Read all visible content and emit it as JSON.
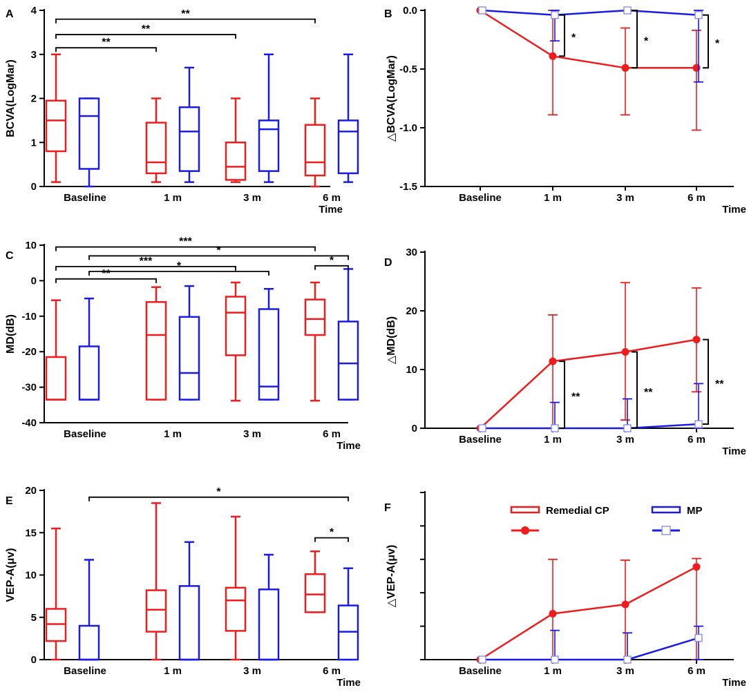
{
  "colors": {
    "red": "#ee1c1c",
    "blue": "#1a1ae6",
    "black": "#000000"
  },
  "chart_data": [
    {
      "id": "A",
      "type": "box",
      "ylabel": "BCVA(LogMar)",
      "xlabel": "Time",
      "categories": [
        "Baseline",
        "1 m",
        "3 m",
        "6 m"
      ],
      "ylim": [
        0,
        4
      ],
      "yticks": [
        0,
        1,
        2,
        3,
        4
      ],
      "series": [
        {
          "name": "Remedial CP",
          "color": "red",
          "boxes": [
            {
              "min": 0.1,
              "q1": 0.8,
              "median": 1.5,
              "q3": 1.95,
              "max": 3.0
            },
            {
              "min": 0.1,
              "q1": 0.3,
              "median": 0.55,
              "q3": 1.45,
              "max": 2.0
            },
            {
              "min": 0.1,
              "q1": 0.15,
              "median": 0.45,
              "q3": 1.0,
              "max": 2.0
            },
            {
              "min": 0.0,
              "q1": 0.25,
              "median": 0.55,
              "q3": 1.4,
              "max": 2.0
            }
          ]
        },
        {
          "name": "MP",
          "color": "blue",
          "boxes": [
            {
              "min": 0.0,
              "q1": 0.4,
              "median": 1.6,
              "q3": 2.0,
              "max": 2.0
            },
            {
              "min": 0.1,
              "q1": 0.35,
              "median": 1.25,
              "q3": 1.8,
              "max": 2.7
            },
            {
              "min": 0.1,
              "q1": 0.35,
              "median": 1.3,
              "q3": 1.5,
              "max": 3.0
            },
            {
              "min": 0.1,
              "q1": 0.3,
              "median": 1.25,
              "q3": 1.5,
              "max": 3.0
            }
          ]
        }
      ],
      "brackets": [
        {
          "from": [
            0,
            0
          ],
          "to": [
            1,
            0
          ],
          "y": 3.15,
          "label": "**"
        },
        {
          "from": [
            0,
            0
          ],
          "to": [
            2,
            0
          ],
          "y": 3.45,
          "label": "**"
        },
        {
          "from": [
            0,
            0
          ],
          "to": [
            3,
            0
          ],
          "y": 3.8,
          "label": "**"
        }
      ]
    },
    {
      "id": "B",
      "type": "line",
      "ylabel": "△BCVA(LogMar)",
      "xlabel": "Time",
      "categories": [
        "Baseline",
        "1 m",
        "3 m",
        "6 m"
      ],
      "ylim": [
        -1.5,
        0
      ],
      "yticks": [
        0,
        -0.5,
        -1.0,
        -1.5
      ],
      "yticklabels": [
        "0.0",
        "-0.5",
        "-1.0",
        "-1.5"
      ],
      "series": [
        {
          "name": "Remedial CP",
          "color": "red",
          "marker": "circle",
          "values": [
            0,
            -0.39,
            -0.49,
            -0.49
          ],
          "err_low": [
            0,
            -0.89,
            -0.89,
            -1.02
          ],
          "err_high": [
            0,
            0.0,
            -0.15,
            -0.17
          ]
        },
        {
          "name": "MP",
          "color": "blue",
          "marker": "square",
          "values": [
            0,
            -0.04,
            0,
            -0.04
          ],
          "err_low": [
            0,
            -0.26,
            0,
            -0.61
          ],
          "err_high": [
            0,
            0,
            0,
            0
          ]
        }
      ],
      "brackets": [
        {
          "x": 1,
          "y1": -0.04,
          "y2": -0.39,
          "label": "*"
        },
        {
          "x": 2,
          "y1": 0,
          "y2": -0.49,
          "label": "*"
        },
        {
          "x": 3,
          "y1": -0.04,
          "y2": -0.49,
          "label": "*"
        }
      ]
    },
    {
      "id": "C",
      "type": "box",
      "ylabel": "MD(dB)",
      "xlabel": "Time",
      "categories": [
        "Baseline",
        "1 m",
        "3 m",
        "6 m"
      ],
      "ylim": [
        -40,
        10
      ],
      "yticks": [
        -40,
        -30,
        -20,
        -10,
        0,
        10
      ],
      "series": [
        {
          "name": "Remedial CP",
          "color": "red",
          "boxes": [
            {
              "min": -33.5,
              "q1": -33.5,
              "median": -33.5,
              "q3": -21.5,
              "max": -5.5
            },
            {
              "min": -33.5,
              "q1": -33.5,
              "median": -15.3,
              "q3": -6.0,
              "max": -1.8
            },
            {
              "min": -33.8,
              "q1": -21.0,
              "median": -9.0,
              "q3": -4.5,
              "max": -0.5
            },
            {
              "min": -33.8,
              "q1": -15.3,
              "median": -10.8,
              "q3": -5.3,
              "max": -0.5
            }
          ]
        },
        {
          "name": "MP",
          "color": "blue",
          "boxes": [
            {
              "min": -33.5,
              "q1": -33.5,
              "median": -33.5,
              "q3": -18.5,
              "max": -5.0
            },
            {
              "min": -33.5,
              "q1": -33.5,
              "median": -26.0,
              "q3": -10.2,
              "max": -1.5
            },
            {
              "min": -33.5,
              "q1": -33.5,
              "median": -29.8,
              "q3": -8.0,
              "max": -2.3
            },
            {
              "min": -33.5,
              "q1": -33.5,
              "median": -23.3,
              "q3": -11.5,
              "max": 3.3
            }
          ]
        }
      ],
      "brackets": [
        {
          "from": [
            0,
            0
          ],
          "to": [
            1,
            0
          ],
          "y": 0.5,
          "label": "**"
        },
        {
          "from": [
            0,
            1
          ],
          "to": [
            2,
            1
          ],
          "y": 2.6,
          "label": "*"
        },
        {
          "from": [
            0,
            0
          ],
          "to": [
            2,
            0
          ],
          "y": 4.0,
          "label": "***"
        },
        {
          "from": [
            0,
            1
          ],
          "to": [
            3,
            1
          ],
          "y": 7.0,
          "label": "*"
        },
        {
          "from": [
            0,
            0
          ],
          "to": [
            3,
            0
          ],
          "y": 9.5,
          "label": "***"
        },
        {
          "from": [
            3,
            0
          ],
          "to": [
            3,
            1
          ],
          "y": 4.2,
          "label": "*"
        }
      ]
    },
    {
      "id": "D",
      "type": "line",
      "ylabel": "△MD(dB)",
      "xlabel": "Time",
      "categories": [
        "Baseline",
        "1 m",
        "3 m",
        "6 m"
      ],
      "ylim": [
        0,
        30
      ],
      "yticks": [
        0,
        10,
        20,
        30
      ],
      "series": [
        {
          "name": "Remedial CP",
          "color": "red",
          "marker": "circle",
          "values": [
            0,
            11.4,
            13.0,
            15.1
          ],
          "err_low": [
            0,
            0,
            1.4,
            6.2
          ],
          "err_high": [
            0,
            19.3,
            24.8,
            23.9
          ]
        },
        {
          "name": "MP",
          "color": "blue",
          "marker": "square",
          "values": [
            0,
            0,
            0,
            0.7
          ],
          "err_low": [
            0,
            0,
            0,
            0
          ],
          "err_high": [
            0,
            4.4,
            5.0,
            7.6
          ]
        }
      ],
      "brackets": [
        {
          "x": 1,
          "y1": 0,
          "y2": 11.4,
          "label": "**"
        },
        {
          "x": 2,
          "y1": 0,
          "y2": 13.0,
          "label": "**"
        },
        {
          "x": 3,
          "y1": 0.7,
          "y2": 15.1,
          "label": "**"
        }
      ]
    },
    {
      "id": "E",
      "type": "box",
      "ylabel": "VEP-A(μv)",
      "xlabel": "Time",
      "categories": [
        "Baseline",
        "1 m",
        "3 m",
        "6 m"
      ],
      "ylim": [
        0,
        20
      ],
      "yticks": [
        0,
        5,
        10,
        15,
        20
      ],
      "series": [
        {
          "name": "Remedial CP",
          "color": "red",
          "boxes": [
            {
              "min": 0.0,
              "q1": 2.2,
              "median": 4.2,
              "q3": 6.0,
              "max": 15.5
            },
            {
              "min": 0.0,
              "q1": 3.3,
              "median": 5.9,
              "q3": 8.2,
              "max": 18.5
            },
            {
              "min": 0.0,
              "q1": 3.4,
              "median": 7.0,
              "q3": 8.5,
              "max": 16.9
            },
            {
              "min": 5.6,
              "q1": 5.6,
              "median": 7.7,
              "q3": 10.1,
              "max": 12.8
            }
          ]
        },
        {
          "name": "MP",
          "color": "blue",
          "boxes": [
            {
              "min": 0.0,
              "q1": 0.0,
              "median": 0.0,
              "q3": 4.0,
              "max": 11.8
            },
            {
              "min": 0.0,
              "q1": 0.0,
              "median": 0.0,
              "q3": 8.7,
              "max": 13.9
            },
            {
              "min": 0.0,
              "q1": 0.0,
              "median": 0.0,
              "q3": 8.3,
              "max": 12.4
            },
            {
              "min": 0.0,
              "q1": 0.0,
              "median": 3.3,
              "q3": 6.4,
              "max": 10.8
            }
          ]
        }
      ],
      "brackets": [
        {
          "from": [
            0,
            1
          ],
          "to": [
            3,
            1
          ],
          "y": 19.2,
          "label": "*"
        },
        {
          "from": [
            3,
            0
          ],
          "to": [
            3,
            1
          ],
          "y": 14.4,
          "label": "*"
        }
      ]
    },
    {
      "id": "F",
      "type": "line",
      "ylabel": "△VEP-A(μv)",
      "xlabel": "Time",
      "categories": [
        "Baseline",
        "1 m",
        "3 m",
        "6 m"
      ],
      "ylim": [
        0,
        10
      ],
      "yticks": [
        0,
        2,
        4,
        6,
        8,
        10
      ],
      "yticklabels": [
        "",
        "",
        "",
        "",
        "",
        ""
      ],
      "series": [
        {
          "name": "Remedial CP",
          "color": "red",
          "marker": "circle",
          "values": [
            0,
            2.75,
            3.3,
            5.55
          ],
          "err_low": [
            0,
            0,
            0,
            0
          ],
          "err_high": [
            0,
            6.0,
            5.95,
            6.05
          ]
        },
        {
          "name": "MP",
          "color": "blue",
          "marker": "square",
          "values": [
            0,
            0,
            0,
            1.3
          ],
          "err_low": [
            0,
            0,
            0,
            0
          ],
          "err_high": [
            0,
            1.75,
            1.6,
            2.0
          ]
        }
      ],
      "legend": [
        {
          "label": "Remedial CP",
          "color": "red",
          "marker": "circle"
        },
        {
          "label": "MP",
          "color": "blue",
          "marker": "square"
        }
      ]
    }
  ]
}
